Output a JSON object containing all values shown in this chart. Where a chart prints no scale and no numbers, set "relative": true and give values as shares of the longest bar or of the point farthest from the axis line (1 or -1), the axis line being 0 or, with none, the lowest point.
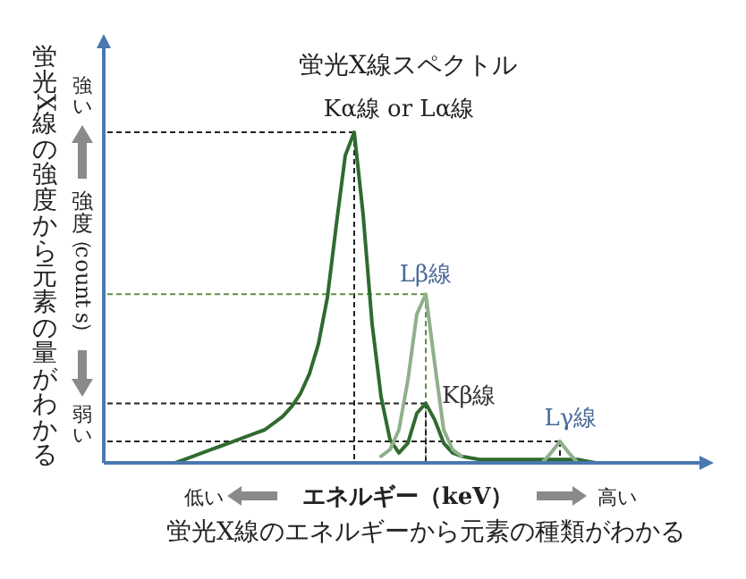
{
  "chart_data": {
    "type": "line",
    "relative": true,
    "title": "蛍光X線スペクトル",
    "xlabel": "エネルギー（keV）",
    "ylabel": "強度（counts）",
    "categories": [
      null,
      null,
      null,
      null,
      null,
      null,
      null,
      null,
      null,
      null,
      null,
      null,
      null,
      null,
      null,
      null,
      null,
      null,
      null,
      null,
      null,
      null,
      null,
      null,
      null,
      null,
      null,
      null,
      null,
      null,
      null,
      null,
      null,
      null,
      null,
      null,
      null,
      null,
      null,
      null,
      null,
      null,
      null,
      null,
      null,
      null,
      null,
      null,
      null,
      null,
      null,
      null,
      null,
      null,
      null,
      null,
      null,
      null,
      null,
      null,
      null,
      null,
      null,
      null,
      null,
      null,
      null,
      null
    ],
    "series": [
      {
        "color": "#2f6b2f",
        "values": [
          null,
          null,
          null,
          null,
          null,
          null,
          null,
          null,
          0,
          0.01,
          0.02,
          0.03,
          0.04,
          0.05,
          0.06,
          0.07,
          0.08,
          0.09,
          0.1,
          0.12,
          0.14,
          0.17,
          0.21,
          0.27,
          0.36,
          0.5,
          0.72,
          0.93,
          1,
          0.75,
          0.42,
          0.2,
          0.07,
          0.03,
          0.06,
          0.15,
          0.18,
          0.13,
          0.06,
          0.03,
          0.02,
          0.015,
          0.01,
          0.01,
          0.01,
          0.01,
          0.01,
          0.01,
          0.01,
          0.01,
          0.01,
          0.01,
          0.01,
          0.01,
          0.005,
          0,
          null,
          null,
          null,
          null,
          null,
          null,
          null,
          null,
          null,
          null,
          null,
          null
        ]
      },
      {
        "color": "#8fb08a",
        "values": [
          null,
          null,
          null,
          null,
          null,
          null,
          null,
          null,
          null,
          null,
          null,
          null,
          null,
          null,
          null,
          null,
          null,
          null,
          null,
          null,
          null,
          null,
          null,
          null,
          null,
          null,
          null,
          null,
          null,
          null,
          null,
          0.02,
          0.04,
          0.1,
          0.25,
          0.45,
          0.51,
          0.3,
          0.1,
          0.04,
          0.02,
          null,
          null,
          null,
          null,
          null,
          null,
          null,
          null,
          0,
          0.03,
          0.065,
          0.03,
          0,
          null,
          null,
          null,
          null,
          null,
          null,
          null,
          null,
          null,
          null,
          null,
          null,
          null,
          null
        ]
      }
    ],
    "ref_lines": [
      {
        "axis": "y",
        "value": 1,
        "color": "#222222",
        "line_style": "dashed"
      },
      {
        "axis": "y",
        "value": 0.51,
        "color": "#5f8f45",
        "line_style": "dashed"
      },
      {
        "axis": "y",
        "value": 0.18,
        "color": "#222222",
        "line_style": "dashed"
      },
      {
        "axis": "y",
        "value": 0.065,
        "color": "#222222",
        "line_style": "dashed"
      }
    ],
    "annotations": [
      "Kα線 or Lα線",
      "Lβ線",
      "Kβ線",
      "Lγ線",
      "強い",
      "弱い",
      "低い",
      "高い",
      "蛍光X線の強度から元素の量がわかる",
      "蛍光X線のエネルギーから元素の種類がわかる"
    ]
  }
}
